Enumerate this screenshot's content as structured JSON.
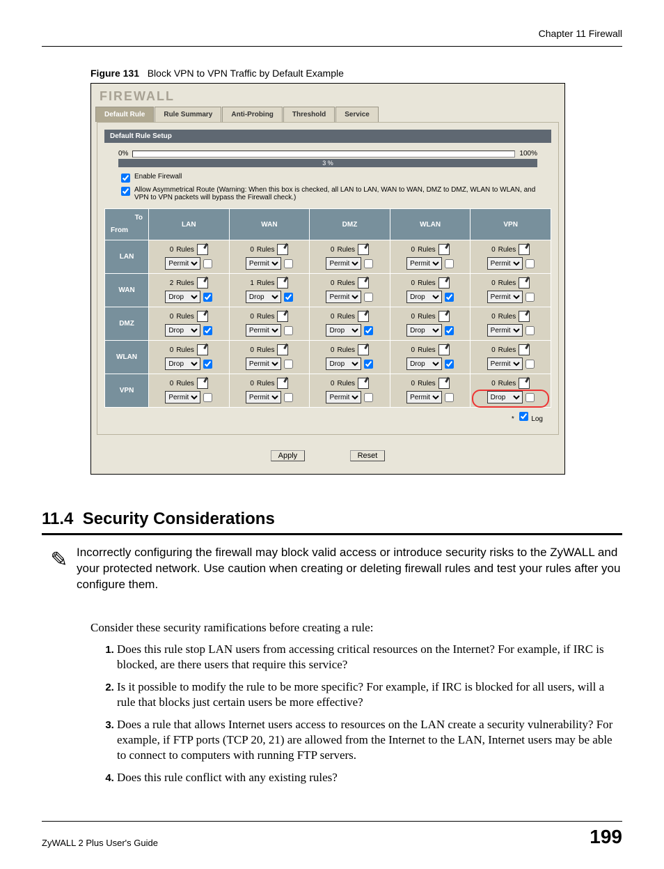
{
  "chapter_header": "Chapter 11 Firewall",
  "figure": {
    "label": "Figure 131",
    "caption": "Block VPN to VPN Traffic by Default Example"
  },
  "screenshot": {
    "title": "FIREWALL",
    "title_color": "#a8a294",
    "background_color": "#e8e5d9",
    "tabs": [
      "Default Rule",
      "Rule Summary",
      "Anti-Probing",
      "Threshold",
      "Service"
    ],
    "active_tab_index": 0,
    "panel_bar": "Default Rule Setup",
    "header_bg_color": "#78909c",
    "progress": {
      "left_label": "0%",
      "right_label": "100%",
      "value_text": "3 %"
    },
    "check1": {
      "checked": true,
      "label": "Enable Firewall"
    },
    "check2": {
      "checked": true,
      "label": "Allow Asymmetrical Route (Warning: When this box is checked, all LAN to LAN, WAN to WAN, DMZ to DMZ, WLAN to WLAN, and VPN to VPN packets will bypass the Firewall check.)"
    },
    "corner_to": "To",
    "corner_from": "From",
    "columns": [
      "LAN",
      "WAN",
      "DMZ",
      "WLAN",
      "VPN"
    ],
    "rows": [
      "LAN",
      "WAN",
      "DMZ",
      "WLAN",
      "VPN"
    ],
    "rules_word": "Rules",
    "grid": [
      [
        {
          "count": 0,
          "action": "Permit",
          "log": false
        },
        {
          "count": 0,
          "action": "Permit",
          "log": false
        },
        {
          "count": 0,
          "action": "Permit",
          "log": false
        },
        {
          "count": 0,
          "action": "Permit",
          "log": false
        },
        {
          "count": 0,
          "action": "Permit",
          "log": false
        }
      ],
      [
        {
          "count": 2,
          "action": "Drop",
          "log": true
        },
        {
          "count": 1,
          "action": "Drop",
          "log": true
        },
        {
          "count": 0,
          "action": "Permit",
          "log": false
        },
        {
          "count": 0,
          "action": "Drop",
          "log": true
        },
        {
          "count": 0,
          "action": "Permit",
          "log": false
        }
      ],
      [
        {
          "count": 0,
          "action": "Drop",
          "log": true
        },
        {
          "count": 0,
          "action": "Permit",
          "log": false
        },
        {
          "count": 0,
          "action": "Drop",
          "log": true
        },
        {
          "count": 0,
          "action": "Drop",
          "log": true
        },
        {
          "count": 0,
          "action": "Permit",
          "log": false
        }
      ],
      [
        {
          "count": 0,
          "action": "Drop",
          "log": true
        },
        {
          "count": 0,
          "action": "Permit",
          "log": false
        },
        {
          "count": 0,
          "action": "Drop",
          "log": true
        },
        {
          "count": 0,
          "action": "Drop",
          "log": true
        },
        {
          "count": 0,
          "action": "Permit",
          "log": false
        }
      ],
      [
        {
          "count": 0,
          "action": "Permit",
          "log": false
        },
        {
          "count": 0,
          "action": "Permit",
          "log": false
        },
        {
          "count": 0,
          "action": "Permit",
          "log": false
        },
        {
          "count": 0,
          "action": "Permit",
          "log": false
        },
        {
          "count": 0,
          "action": "Drop",
          "log": false,
          "highlight": true
        }
      ]
    ],
    "action_options": [
      "Permit",
      "Drop"
    ],
    "log_marker": "*",
    "log_checked": true,
    "log_label": "Log",
    "buttons": {
      "apply": "Apply",
      "reset": "Reset"
    }
  },
  "section": {
    "number": "11.4",
    "title": "Security Considerations"
  },
  "note_text": "Incorrectly configuring the firewall may block valid access or introduce security risks to the ZyWALL and your protected network. Use caution when creating or deleting firewall rules and test your rules after you configure them.",
  "body_intro": "Consider these security ramifications before creating a rule:",
  "considerations": [
    "Does this rule stop LAN users from accessing critical resources on the Internet? For example, if IRC is blocked, are there users that require this service?",
    "Is it possible to modify the rule to be more specific? For example, if IRC is blocked for all users, will a rule that blocks just certain users be more effective?",
    "Does a rule that allows Internet users access to resources on the LAN create a security vulnerability? For example, if FTP ports (TCP 20, 21) are allowed from the Internet to the LAN, Internet users may be able to connect to computers with running FTP servers.",
    "Does this rule conflict with any existing rules?"
  ],
  "footer": {
    "guide": "ZyWALL 2 Plus User's Guide",
    "page_number": "199"
  }
}
